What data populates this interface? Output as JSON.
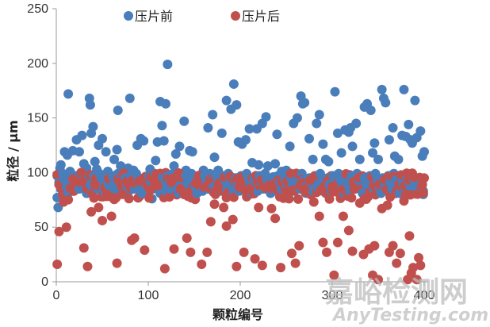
{
  "chart_data": {
    "type": "scatter",
    "title": "",
    "xlabel": "颗粒编号",
    "ylabel": "粒径 / μm",
    "xlim": [
      0,
      400
    ],
    "ylim": [
      0,
      250
    ],
    "xticks": [
      0,
      100,
      200,
      300,
      400
    ],
    "yticks": [
      0,
      50,
      100,
      150,
      200,
      250
    ],
    "grid": false,
    "legend_position": "top",
    "series": [
      {
        "name": "压片前",
        "color": "#4a7ebb",
        "points": [
          [
            1,
            77
          ],
          [
            2,
            68
          ],
          [
            4,
            104
          ],
          [
            5,
            107
          ],
          [
            13,
            172
          ],
          [
            9,
            119
          ],
          [
            12,
            116
          ],
          [
            15,
            101
          ],
          [
            18,
            120
          ],
          [
            22,
            130
          ],
          [
            25,
            119
          ],
          [
            28,
            134
          ],
          [
            30,
            108
          ],
          [
            33,
            104
          ],
          [
            36,
            168
          ],
          [
            37,
            162
          ],
          [
            38,
            136
          ],
          [
            40,
            142
          ],
          [
            42,
            110
          ],
          [
            44,
            103
          ],
          [
            46,
            125
          ],
          [
            50,
            131
          ],
          [
            54,
            119
          ],
          [
            56,
            101
          ],
          [
            60,
            83
          ],
          [
            63,
            112
          ],
          [
            66,
            121
          ],
          [
            67,
            157
          ],
          [
            70,
            106
          ],
          [
            74,
            96
          ],
          [
            78,
            104
          ],
          [
            80,
            168
          ],
          [
            84,
            102
          ],
          [
            88,
            125
          ],
          [
            92,
            131
          ],
          [
            95,
            129
          ],
          [
            99,
            92
          ],
          [
            102,
            103
          ],
          [
            104,
            76
          ],
          [
            108,
            111
          ],
          [
            110,
            128
          ],
          [
            113,
            165
          ],
          [
            115,
            143
          ],
          [
            117,
            129
          ],
          [
            119,
            163
          ],
          [
            121,
            199
          ],
          [
            124,
            95
          ],
          [
            128,
            106
          ],
          [
            130,
            117
          ],
          [
            134,
            124
          ],
          [
            139,
            147
          ],
          [
            141,
            102
          ],
          [
            145,
            120
          ],
          [
            148,
            119
          ],
          [
            155,
            87
          ],
          [
            160,
            102
          ],
          [
            165,
            141
          ],
          [
            170,
            153
          ],
          [
            172,
            114
          ],
          [
            176,
            102
          ],
          [
            180,
            136
          ],
          [
            185,
            166
          ],
          [
            190,
            158
          ],
          [
            193,
            181
          ],
          [
            196,
            162
          ],
          [
            198,
            128
          ],
          [
            202,
            126
          ],
          [
            206,
            130
          ],
          [
            210,
            140
          ],
          [
            213,
            109
          ],
          [
            218,
            140
          ],
          [
            220,
            107
          ],
          [
            224,
            145
          ],
          [
            228,
            151
          ],
          [
            230,
            106
          ],
          [
            236,
            96
          ],
          [
            238,
            108
          ],
          [
            240,
            135
          ],
          [
            245,
            101
          ],
          [
            250,
            102
          ],
          [
            254,
            124
          ],
          [
            258,
            145
          ],
          [
            262,
            150
          ],
          [
            266,
            170
          ],
          [
            268,
            163
          ],
          [
            270,
            164
          ],
          [
            275,
            131
          ],
          [
            279,
            112
          ],
          [
            283,
            145
          ],
          [
            286,
            153
          ],
          [
            290,
            126
          ],
          [
            293,
            112
          ],
          [
            296,
            110
          ],
          [
            303,
            174
          ],
          [
            306,
            136
          ],
          [
            310,
            118
          ],
          [
            314,
            139
          ],
          [
            318,
            137
          ],
          [
            320,
            141
          ],
          [
            322,
            124
          ],
          [
            326,
            145
          ],
          [
            330,
            112
          ],
          [
            335,
            160
          ],
          [
            338,
            163
          ],
          [
            342,
            157
          ],
          [
            344,
            118
          ],
          [
            346,
            127
          ],
          [
            350,
            112
          ],
          [
            354,
            176
          ],
          [
            356,
            168
          ],
          [
            358,
            164
          ],
          [
            362,
            130
          ],
          [
            366,
            141
          ],
          [
            368,
            115
          ],
          [
            372,
            112
          ],
          [
            376,
            134
          ],
          [
            378,
            176
          ],
          [
            380,
            133
          ],
          [
            383,
            144
          ],
          [
            385,
            130
          ],
          [
            387,
            127
          ],
          [
            390,
            166
          ],
          [
            392,
            132
          ],
          [
            394,
            93
          ],
          [
            396,
            138
          ],
          [
            398,
            115
          ],
          [
            399,
            80
          ],
          [
            400,
            119
          ]
        ]
      },
      {
        "name": "压片后",
        "color": "#c0504d",
        "points": [
          [
            1,
            16
          ],
          [
            3,
            46
          ],
          [
            8,
            73
          ],
          [
            11,
            50
          ],
          [
            18,
            94
          ],
          [
            28,
            92
          ],
          [
            30,
            31
          ],
          [
            34,
            14
          ],
          [
            38,
            64
          ],
          [
            42,
            89
          ],
          [
            46,
            68
          ],
          [
            50,
            56
          ],
          [
            55,
            80
          ],
          [
            60,
            60
          ],
          [
            66,
            17
          ],
          [
            72,
            80
          ],
          [
            78,
            90
          ],
          [
            82,
            38
          ],
          [
            85,
            40
          ],
          [
            90,
            92
          ],
          [
            96,
            29
          ],
          [
            102,
            84
          ],
          [
            106,
            94
          ],
          [
            110,
            88
          ],
          [
            118,
            12
          ],
          [
            125,
            91
          ],
          [
            128,
            30
          ],
          [
            135,
            85
          ],
          [
            142,
            40
          ],
          [
            146,
            27
          ],
          [
            152,
            90
          ],
          [
            158,
            16
          ],
          [
            164,
            27
          ],
          [
            168,
            55
          ],
          [
            172,
            71
          ],
          [
            176,
            87
          ],
          [
            182,
            68
          ],
          [
            185,
            51
          ],
          [
            192,
            57
          ],
          [
            196,
            14
          ],
          [
            200,
            91
          ],
          [
            204,
            27
          ],
          [
            210,
            85
          ],
          [
            216,
            21
          ],
          [
            220,
            68
          ],
          [
            224,
            15
          ],
          [
            230,
            87
          ],
          [
            234,
            67
          ],
          [
            238,
            58
          ],
          [
            244,
            13
          ],
          [
            250,
            83
          ],
          [
            256,
            26
          ],
          [
            260,
            17
          ],
          [
            264,
            33
          ],
          [
            270,
            85
          ],
          [
            276,
            93
          ],
          [
            280,
            73
          ],
          [
            286,
            60
          ],
          [
            290,
            36
          ],
          [
            294,
            27
          ],
          [
            300,
            87
          ],
          [
            302,
            6
          ],
          [
            306,
            36
          ],
          [
            312,
            60
          ],
          [
            318,
            47
          ],
          [
            322,
            28
          ],
          [
            324,
            85
          ],
          [
            330,
            72
          ],
          [
            334,
            25
          ],
          [
            340,
            30
          ],
          [
            344,
            6
          ],
          [
            346,
            33
          ],
          [
            350,
            2
          ],
          [
            354,
            67
          ],
          [
            360,
            70
          ],
          [
            362,
            27
          ],
          [
            366,
            33
          ],
          [
            370,
            17
          ],
          [
            374,
            26
          ],
          [
            378,
            74
          ],
          [
            380,
            80
          ],
          [
            382,
            2
          ],
          [
            384,
            42
          ],
          [
            386,
            8
          ],
          [
            388,
            13
          ],
          [
            392,
            2
          ],
          [
            394,
            22
          ],
          [
            396,
            15
          ],
          [
            398,
            89
          ],
          [
            400,
            95
          ]
        ],
        "dense_band": {
          "x_range": [
            1,
            400
          ],
          "y_range": [
            75,
            100
          ],
          "note": "most 压片后 points lie in 75–100 μm band"
        }
      }
    ],
    "annotations": [
      "嘉峪检测网",
      "AnyTesting.com"
    ]
  },
  "legend": {
    "items": [
      {
        "label": "压片前",
        "color": "#4a7ebb"
      },
      {
        "label": "压片后",
        "color": "#c0504d"
      }
    ]
  },
  "axes": {
    "xlabel": "颗粒编号",
    "ylabel": "粒径 / μm",
    "xticks": [
      "0",
      "100",
      "200",
      "300",
      "400"
    ],
    "yticks": [
      "0",
      "50",
      "100",
      "150",
      "200",
      "250"
    ]
  },
  "watermark": {
    "cn": "嘉峪检测网",
    "en": "AnyTesting.com"
  }
}
